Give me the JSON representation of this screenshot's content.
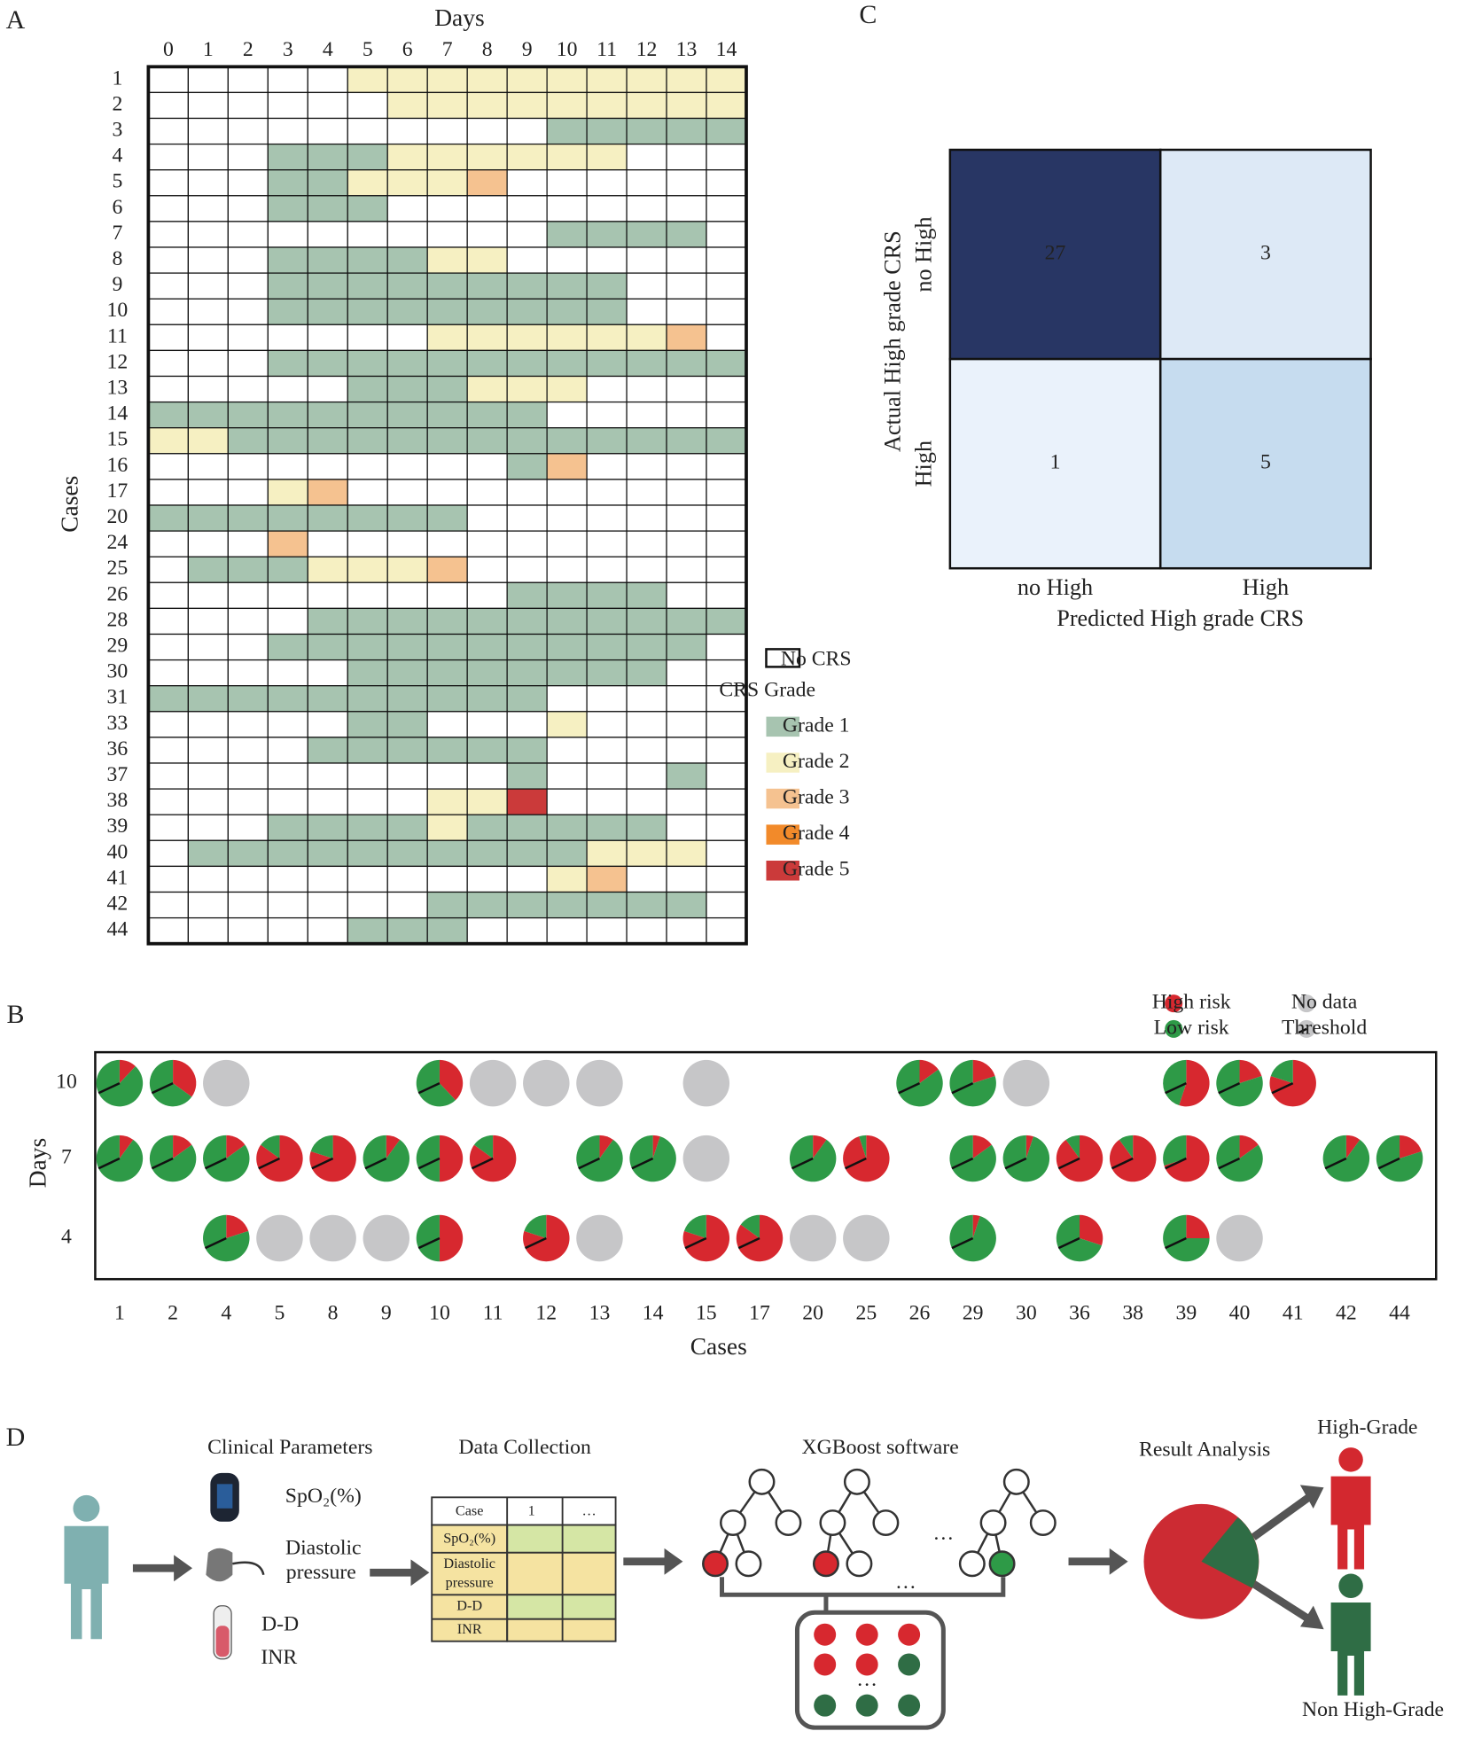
{
  "panel_labels": [
    "A",
    "B",
    "C",
    "D"
  ],
  "chart_data": [
    {
      "type": "heatmap",
      "x_label": "Days",
      "y_label": "Cases",
      "x": [
        0,
        1,
        2,
        3,
        4,
        5,
        6,
        7,
        8,
        9,
        10,
        11,
        12,
        13,
        14
      ],
      "categories": [
        "1",
        "2",
        "3",
        "4",
        "5",
        "6",
        "7",
        "8",
        "9",
        "10",
        "11",
        "12",
        "13",
        "14",
        "15",
        "16",
        "17",
        "20",
        "24",
        "25",
        "26",
        "28",
        "29",
        "30",
        "31",
        "33",
        "36",
        "37",
        "38",
        "39",
        "40",
        "41",
        "42",
        "44"
      ],
      "values": [
        [
          0,
          0,
          0,
          0,
          0,
          2,
          2,
          2,
          2,
          2,
          2,
          2,
          2,
          2,
          2
        ],
        [
          0,
          0,
          0,
          0,
          0,
          0,
          2,
          2,
          2,
          2,
          2,
          2,
          2,
          2,
          2
        ],
        [
          0,
          0,
          0,
          0,
          0,
          0,
          0,
          0,
          0,
          0,
          1,
          1,
          1,
          1,
          1
        ],
        [
          0,
          0,
          0,
          1,
          1,
          1,
          2,
          2,
          2,
          2,
          2,
          2,
          0,
          0,
          0
        ],
        [
          0,
          0,
          0,
          1,
          1,
          2,
          2,
          2,
          3,
          0,
          0,
          0,
          0,
          0,
          0
        ],
        [
          0,
          0,
          0,
          1,
          1,
          1,
          0,
          0,
          0,
          0,
          0,
          0,
          0,
          0,
          0
        ],
        [
          0,
          0,
          0,
          0,
          0,
          0,
          0,
          0,
          0,
          0,
          1,
          1,
          1,
          1,
          0
        ],
        [
          0,
          0,
          0,
          1,
          1,
          1,
          1,
          2,
          2,
          0,
          0,
          0,
          0,
          0,
          0
        ],
        [
          0,
          0,
          0,
          1,
          1,
          1,
          1,
          1,
          1,
          1,
          1,
          1,
          0,
          0,
          0
        ],
        [
          0,
          0,
          0,
          1,
          1,
          1,
          1,
          1,
          1,
          1,
          1,
          1,
          0,
          0,
          0
        ],
        [
          0,
          0,
          0,
          0,
          0,
          0,
          0,
          2,
          2,
          2,
          2,
          2,
          2,
          3,
          0
        ],
        [
          0,
          0,
          0,
          1,
          1,
          1,
          1,
          1,
          1,
          1,
          1,
          1,
          1,
          1,
          1
        ],
        [
          0,
          0,
          0,
          0,
          0,
          1,
          1,
          1,
          2,
          2,
          2,
          0,
          0,
          0,
          0
        ],
        [
          1,
          1,
          1,
          1,
          1,
          1,
          1,
          1,
          1,
          1,
          0,
          0,
          0,
          0,
          0
        ],
        [
          2,
          2,
          1,
          1,
          1,
          1,
          1,
          1,
          1,
          1,
          1,
          1,
          1,
          1,
          1
        ],
        [
          0,
          0,
          0,
          0,
          0,
          0,
          0,
          0,
          0,
          1,
          3,
          0,
          0,
          0,
          0
        ],
        [
          0,
          0,
          0,
          2,
          3,
          0,
          0,
          0,
          0,
          0,
          0,
          0,
          0,
          0,
          0
        ],
        [
          1,
          1,
          1,
          1,
          1,
          1,
          1,
          1,
          0,
          0,
          0,
          0,
          0,
          0,
          0
        ],
        [
          0,
          0,
          0,
          3,
          0,
          0,
          0,
          0,
          0,
          0,
          0,
          0,
          0,
          0,
          0
        ],
        [
          0,
          1,
          1,
          1,
          2,
          2,
          2,
          3,
          0,
          0,
          0,
          0,
          0,
          0,
          0
        ],
        [
          0,
          0,
          0,
          0,
          0,
          0,
          0,
          0,
          0,
          1,
          1,
          1,
          1,
          0,
          0
        ],
        [
          0,
          0,
          0,
          0,
          1,
          1,
          1,
          1,
          1,
          1,
          1,
          1,
          1,
          1,
          1
        ],
        [
          0,
          0,
          0,
          1,
          1,
          1,
          1,
          1,
          1,
          1,
          1,
          1,
          1,
          1,
          0
        ],
        [
          0,
          0,
          0,
          0,
          0,
          1,
          1,
          1,
          1,
          1,
          1,
          1,
          1,
          0,
          0
        ],
        [
          1,
          1,
          1,
          1,
          1,
          1,
          1,
          1,
          1,
          1,
          0,
          0,
          0,
          0,
          0
        ],
        [
          0,
          0,
          0,
          0,
          0,
          1,
          1,
          0,
          0,
          0,
          2,
          0,
          0,
          0,
          0
        ],
        [
          0,
          0,
          0,
          0,
          1,
          1,
          1,
          1,
          1,
          1,
          0,
          0,
          0,
          0,
          0
        ],
        [
          0,
          0,
          0,
          0,
          0,
          0,
          0,
          0,
          0,
          1,
          0,
          0,
          0,
          1,
          0
        ],
        [
          0,
          0,
          0,
          0,
          0,
          0,
          0,
          2,
          2,
          5,
          0,
          0,
          0,
          0,
          0
        ],
        [
          0,
          0,
          0,
          1,
          1,
          1,
          1,
          2,
          1,
          1,
          1,
          1,
          1,
          0,
          0
        ],
        [
          0,
          1,
          1,
          1,
          1,
          1,
          1,
          1,
          1,
          1,
          1,
          2,
          2,
          2,
          0
        ],
        [
          0,
          0,
          0,
          0,
          0,
          0,
          0,
          0,
          0,
          0,
          2,
          3,
          0,
          0,
          0
        ],
        [
          0,
          0,
          0,
          0,
          0,
          0,
          0,
          1,
          1,
          1,
          1,
          1,
          1,
          1,
          0
        ],
        [
          0,
          0,
          0,
          0,
          0,
          1,
          1,
          1,
          0,
          0,
          0,
          0,
          0,
          0,
          0
        ]
      ],
      "no_crs_label": "No CRS",
      "no_crs_color": "#ffffff",
      "legend_title": "CRS Grade",
      "grade_labels": [
        "Grade  1",
        "Grade  2",
        "Grade  3",
        "Grade  4",
        "Grade  5"
      ],
      "grade_colors": [
        "#a7c4b0",
        "#f6f0c2",
        "#f5c290",
        "#f28a2a",
        "#cb3a3a"
      ]
    },
    {
      "type": "pie_grid",
      "x_label": "Cases",
      "y_label": "Days",
      "categories": [
        "1",
        "2",
        "4",
        "5",
        "8",
        "9",
        "10",
        "11",
        "12",
        "13",
        "14",
        "15",
        "17",
        "20",
        "25",
        "26",
        "29",
        "30",
        "36",
        "38",
        "39",
        "40",
        "41",
        "42",
        "44"
      ],
      "series": [
        {
          "name": "10",
          "values": [
            0.12,
            0.35,
            null,
            null,
            null,
            null,
            0.38,
            null,
            null,
            null,
            null,
            null,
            null,
            null,
            null,
            0.15,
            0.2,
            null,
            null,
            null,
            0.55,
            0.2,
            0.8,
            null,
            null
          ],
          "no_data": [
            false,
            false,
            true,
            false,
            false,
            false,
            false,
            true,
            true,
            true,
            false,
            true,
            false,
            false,
            false,
            false,
            false,
            true,
            false,
            false,
            false,
            false,
            false,
            false,
            false
          ]
        },
        {
          "name": "7",
          "values": [
            0.1,
            0.15,
            0.15,
            0.85,
            0.8,
            0.1,
            0.5,
            0.85,
            null,
            0.1,
            0.05,
            null,
            null,
            0.1,
            0.95,
            null,
            0.15,
            0.05,
            0.9,
            0.9,
            0.7,
            0.15,
            null,
            0.1,
            0.2
          ],
          "no_data": [
            false,
            false,
            false,
            false,
            false,
            false,
            false,
            false,
            false,
            false,
            false,
            true,
            false,
            false,
            false,
            false,
            false,
            false,
            false,
            false,
            false,
            false,
            false,
            false,
            false
          ]
        },
        {
          "name": "4",
          "values": [
            null,
            null,
            0.2,
            null,
            null,
            null,
            0.5,
            null,
            0.8,
            null,
            null,
            0.8,
            0.85,
            null,
            null,
            null,
            0.05,
            null,
            0.3,
            null,
            0.25,
            null,
            null,
            null,
            null
          ],
          "no_data": [
            false,
            false,
            false,
            true,
            true,
            true,
            false,
            false,
            false,
            true,
            false,
            false,
            false,
            true,
            true,
            false,
            false,
            false,
            false,
            false,
            false,
            true,
            false,
            false,
            false
          ]
        }
      ],
      "threshold": 0.68,
      "legend": {
        "high": "High risk",
        "low": "Low risk",
        "no_data": "No data",
        "threshold": "Threshold"
      },
      "colors": {
        "high": "#d7282f",
        "low": "#2e9a47",
        "no_data": "#c6c6c8"
      }
    },
    {
      "type": "confusion_matrix",
      "x_label": "Predicted High grade CRS",
      "y_label": "Actual High grade CRS",
      "x_categories": [
        "no High",
        "High"
      ],
      "y_categories": [
        "no High",
        "High"
      ],
      "values": [
        [
          27,
          3
        ],
        [
          1,
          5
        ]
      ],
      "colors": [
        [
          "#283664",
          "#dde9f6"
        ],
        [
          "#eaf2fb",
          "#c6dcef"
        ]
      ]
    }
  ],
  "diagram": {
    "clinical": {
      "title": "Clinical Parameters",
      "spo2": "SpO₂(%)",
      "diastolic": [
        "Diastolic",
        "pressure"
      ],
      "dd": "D-D",
      "inr": "INR"
    },
    "table": {
      "title": "Data Collection",
      "header": [
        "Case",
        "1",
        "…"
      ],
      "rows": [
        [
          "SpO₂(%)"
        ],
        [
          "Diastolic",
          "pressure"
        ],
        [
          "D-D"
        ],
        [
          "INR"
        ]
      ]
    },
    "model": {
      "title": "XGBoost software",
      "ellipses": [
        "…",
        "…",
        "…"
      ]
    },
    "result": {
      "title": "Result Analysis",
      "high": "High-Grade",
      "non_high": "Non High-Grade"
    }
  }
}
